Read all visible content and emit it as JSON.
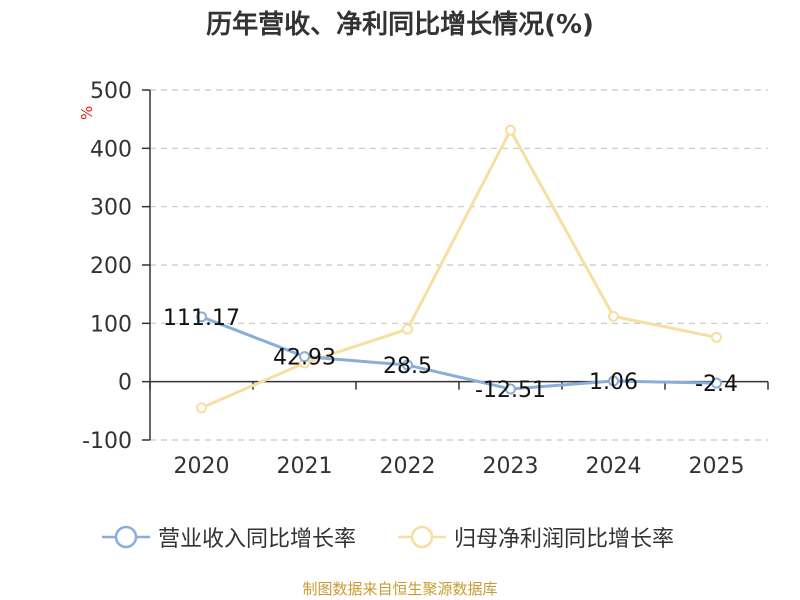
{
  "chart_data": {
    "type": "line",
    "title": "历年营收、净利同比增长情况(%)",
    "unit": "%",
    "categories": [
      "2020",
      "2021",
      "2022",
      "2023",
      "2024",
      "2025"
    ],
    "ylim": [
      -100,
      500
    ],
    "yticks": [
      -100,
      0,
      100,
      200,
      300,
      400,
      500
    ],
    "grid": true,
    "legend_position": "bottom",
    "series": [
      {
        "name": "营业收入同比增长率",
        "color": "#8aaed8",
        "values": [
          111.17,
          42.93,
          28.5,
          -12.51,
          1.06,
          -2.4
        ],
        "labels": [
          "111.17",
          "42.93",
          "28.5",
          "-12.51",
          "1.06",
          "-2.4"
        ]
      },
      {
        "name": "归母净利润同比增长率",
        "color": "#f9dea2",
        "values": [
          -45,
          32,
          90,
          431,
          112,
          76
        ]
      }
    ]
  },
  "source": "制图数据来自恒生聚源数据库"
}
